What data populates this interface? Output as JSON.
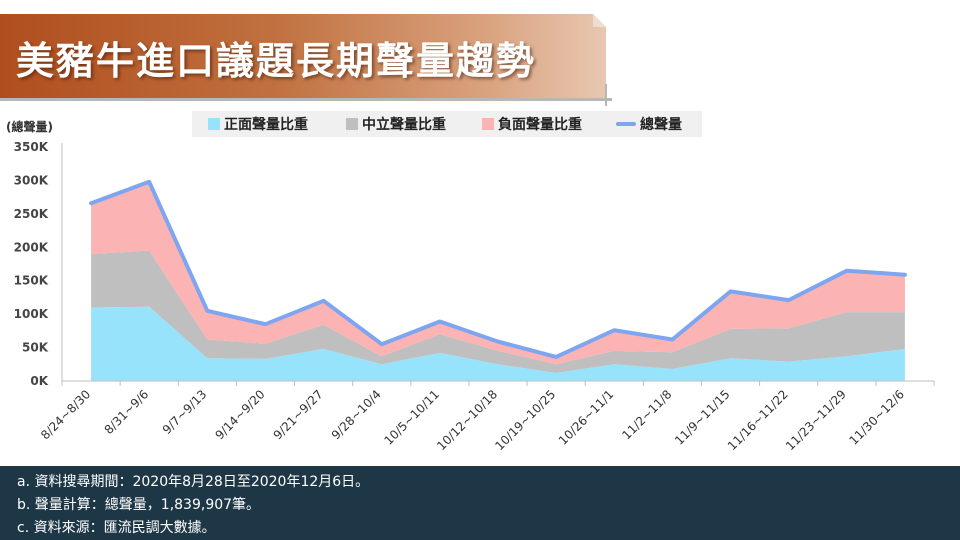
{
  "title": "美豬牛進口議題長期聲量趨勢",
  "colors": {
    "positive": "#97e3fb",
    "neutral": "#bfbfbf",
    "negative": "#fbb3b3",
    "total": "#7ea5f0",
    "banner_dark": "#b04e1e",
    "notes_bg": "#1e3747"
  },
  "notes": [
    "a. 資料搜尋期間：2020年8月28日至2020年12月6日。",
    "b. 聲量計算：總聲量，1,839,907筆。",
    "c. 資料來源：匯流民調大數據。"
  ],
  "chart_data": {
    "type": "area",
    "ylabel": "(總聲量)",
    "ylim": [
      0,
      350000
    ],
    "yticks": [
      0,
      50000,
      100000,
      150000,
      200000,
      250000,
      300000,
      350000
    ],
    "ytick_labels": [
      "0K",
      "50K",
      "100K",
      "150K",
      "200K",
      "250K",
      "300K",
      "350K"
    ],
    "grid": false,
    "legend_position": "top",
    "categories": [
      "8/24~8/30",
      "8/31~9/6",
      "9/7~9/13",
      "9/14~9/20",
      "9/21~9/27",
      "9/28~10/4",
      "10/5~10/11",
      "10/12~10/18",
      "10/19~10/25",
      "10/26~11/1",
      "11/2~11/8",
      "11/9~11/15",
      "11/16~11/22",
      "11/23~11/29",
      "11/30~12/6"
    ],
    "series": [
      {
        "name": "正面聲量比重",
        "kind": "stacked-area",
        "values": [
          110000,
          111000,
          34000,
          33000,
          48000,
          25000,
          42000,
          25000,
          12000,
          25000,
          18000,
          34000,
          29000,
          37000,
          48000
        ]
      },
      {
        "name": "中立聲量比重",
        "kind": "stacked-area",
        "values": [
          80000,
          84000,
          28000,
          23000,
          36000,
          12000,
          28000,
          20000,
          13000,
          20000,
          25000,
          44000,
          50000,
          66000,
          55000
        ]
      },
      {
        "name": "負面聲量比重",
        "kind": "stacked-area",
        "values": [
          76000,
          103000,
          43000,
          29000,
          36000,
          18000,
          19000,
          14000,
          11000,
          31000,
          19000,
          56000,
          42000,
          62000,
          56000
        ]
      },
      {
        "name": "總聲量",
        "kind": "line",
        "values": [
          266000,
          298000,
          105000,
          85000,
          120000,
          55000,
          89000,
          59000,
          36000,
          76000,
          62000,
          134000,
          121000,
          165000,
          159000
        ]
      }
    ]
  }
}
